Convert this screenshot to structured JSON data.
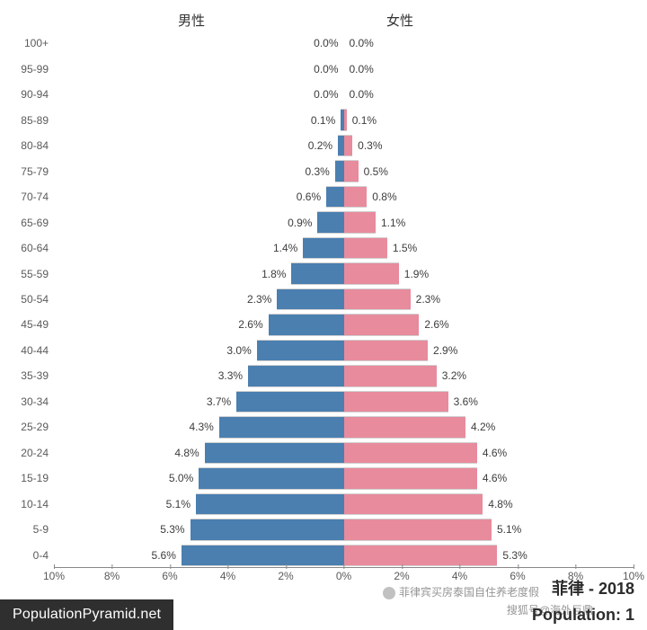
{
  "chart": {
    "type": "population-pyramid",
    "male_label": "男性",
    "female_label": "女性",
    "male_color": "#4a7fb0",
    "female_color": "#e88b9d",
    "bar_border_color": "#d0d0d0",
    "background_color": "#ffffff",
    "label_fontsize": 12,
    "legend_fontsize": 15,
    "x_max_percent": 10,
    "x_ticks": [
      10,
      8,
      6,
      4,
      2,
      0,
      2,
      4,
      6,
      8,
      10
    ],
    "x_tick_suffix": "%",
    "age_groups": [
      "100+",
      "95-99",
      "90-94",
      "85-89",
      "80-84",
      "75-79",
      "70-74",
      "65-69",
      "60-64",
      "55-59",
      "50-54",
      "45-49",
      "40-44",
      "35-39",
      "30-34",
      "25-29",
      "20-24",
      "15-19",
      "10-14",
      "5-9",
      "0-4"
    ],
    "male_values": [
      0.0,
      0.0,
      0.0,
      0.1,
      0.2,
      0.3,
      0.6,
      0.9,
      1.4,
      1.8,
      2.3,
      2.6,
      3.0,
      3.3,
      3.7,
      4.3,
      4.8,
      5.0,
      5.1,
      5.3,
      5.6
    ],
    "female_values": [
      0.0,
      0.0,
      0.0,
      0.1,
      0.3,
      0.5,
      0.8,
      1.1,
      1.5,
      1.9,
      2.3,
      2.6,
      2.9,
      3.2,
      3.6,
      4.2,
      4.6,
      4.6,
      4.8,
      5.1,
      5.3
    ]
  },
  "footer": {
    "title": "菲律 - 2018",
    "population_prefix": "Population: 1"
  },
  "brand": "PopulationPyramid.net",
  "watermark": {
    "line1": "菲律宾买房泰国自住养老度假",
    "line2": "搜狐号@海外巨鼎"
  }
}
